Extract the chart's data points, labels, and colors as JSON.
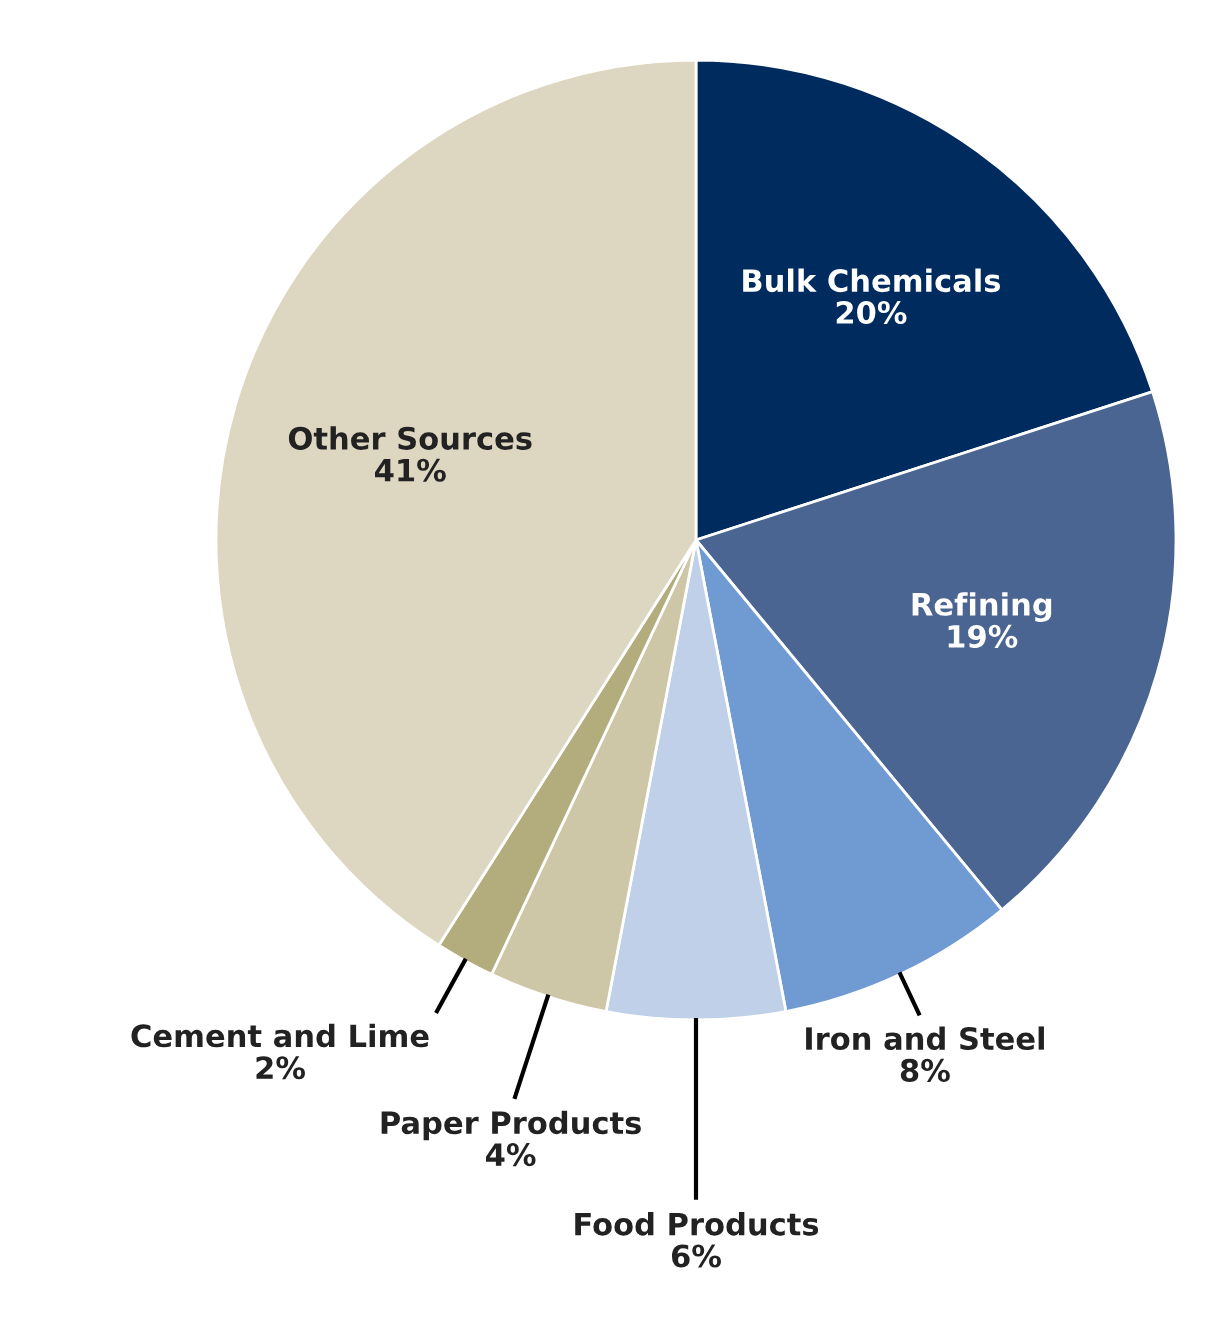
{
  "chart_data": {
    "type": "pie",
    "categories": [
      "Bulk Chemicals",
      "Refining",
      "Iron and Steel",
      "Food Products",
      "Paper Products",
      "Cement and Lime",
      "Other Sources"
    ],
    "values": [
      20,
      19,
      8,
      6,
      4,
      2,
      41
    ],
    "value_labels": [
      "20%",
      "19%",
      "8%",
      "6%",
      "4%",
      "2%",
      "41%"
    ],
    "colors": [
      "#002b5f",
      "#4b6592",
      "#709bd2",
      "#c1d0e9",
      "#cdc6a7",
      "#b3ac7d",
      "#ddd6c1"
    ]
  }
}
